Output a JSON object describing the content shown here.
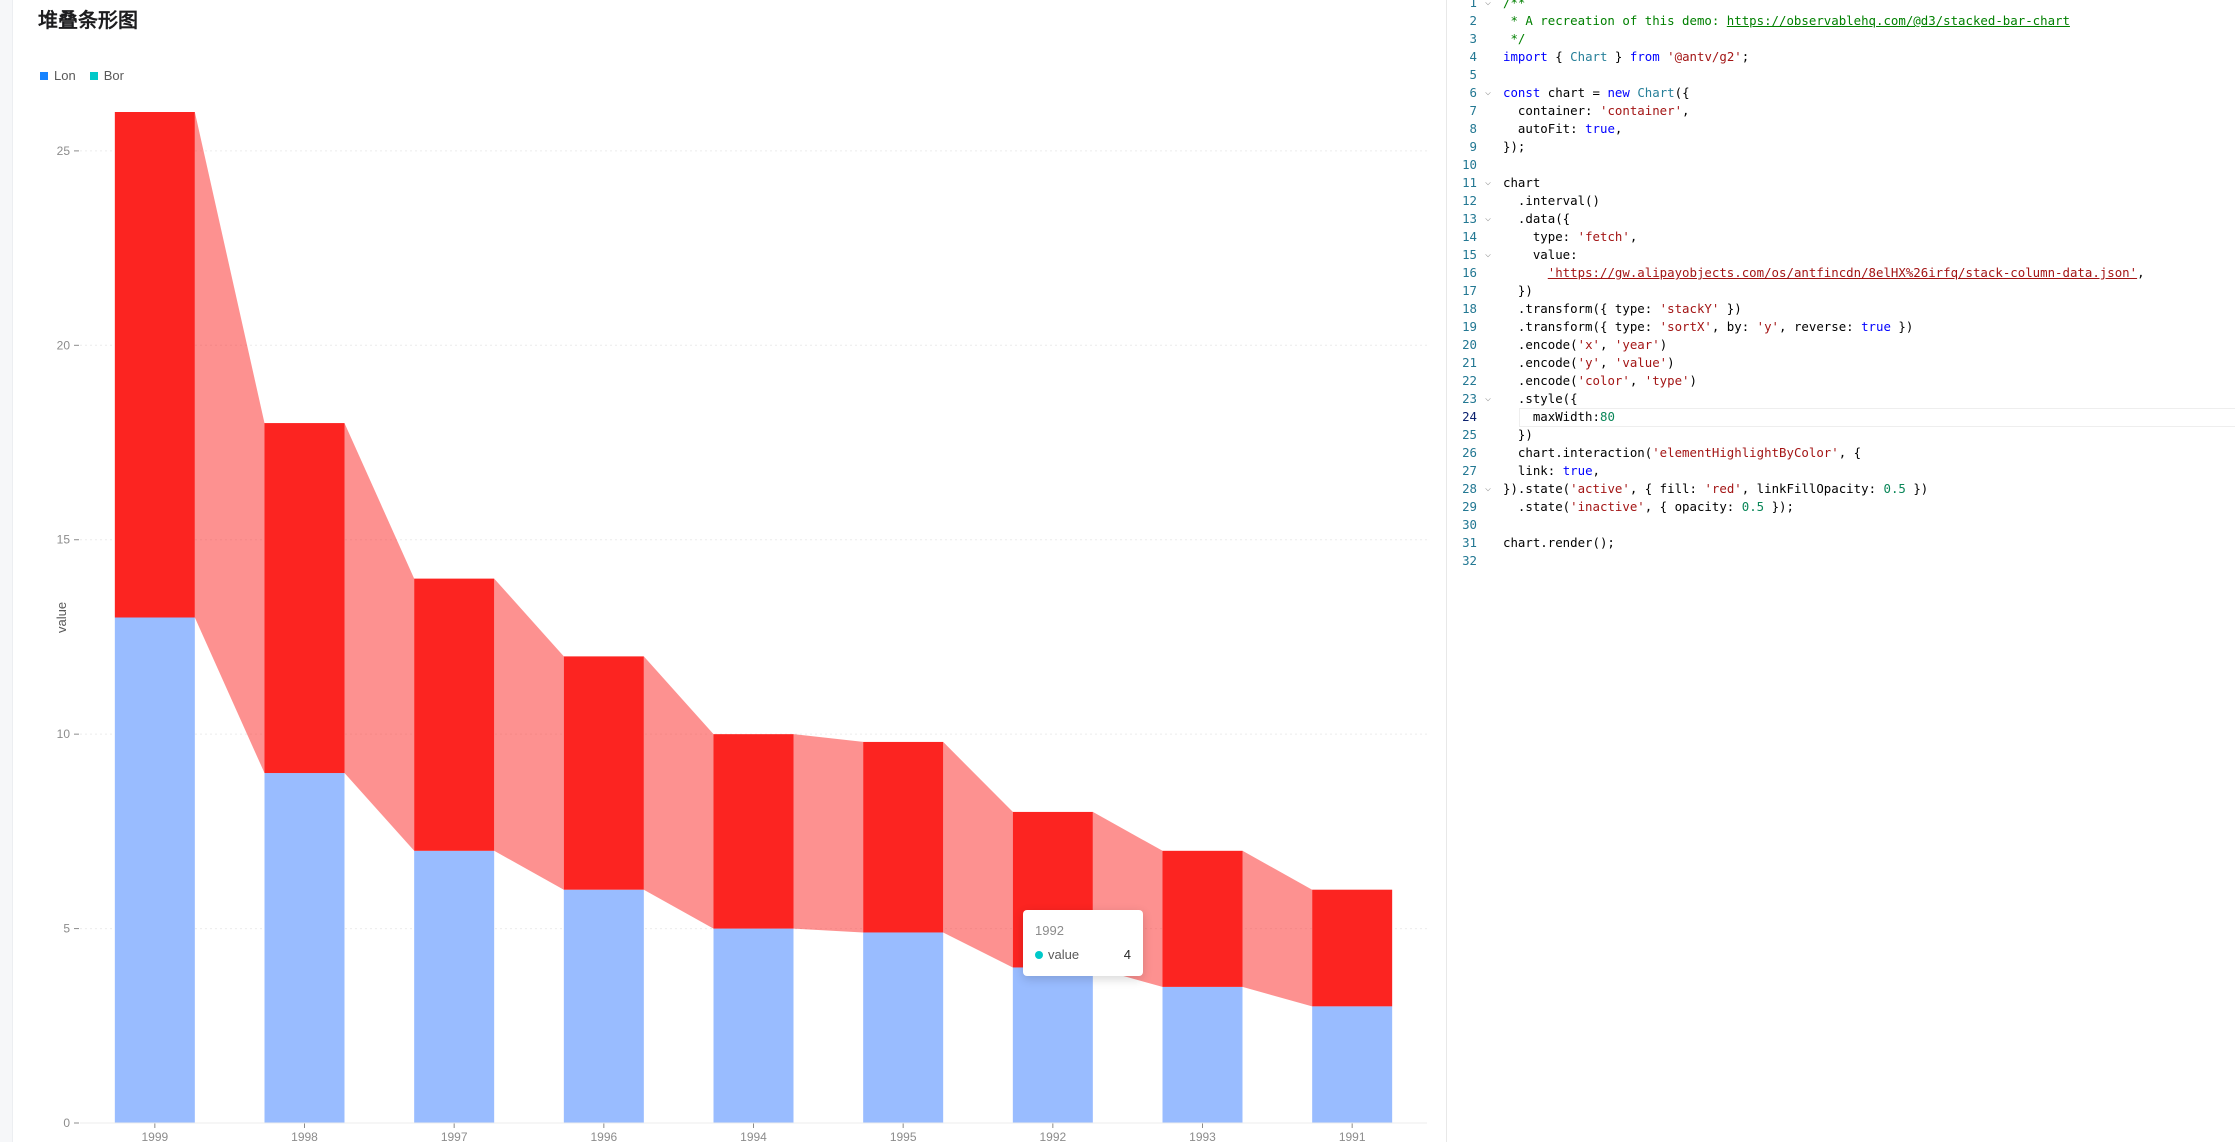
{
  "page": {
    "title": "堆叠条形图"
  },
  "colors": {
    "series_blue": "#99bcff",
    "series_red": "#fc2421",
    "link_fill": "#fc2421",
    "legend_blue": "#1783ff",
    "legend_teal": "#00c9c9",
    "axis": "#8c8c8c",
    "grid": "#ececec"
  },
  "chart_data": {
    "type": "bar",
    "stacked": true,
    "categories": [
      "1999",
      "1998",
      "1997",
      "1996",
      "1994",
      "1995",
      "1992",
      "1993",
      "1991"
    ],
    "series": [
      {
        "name": "Lon",
        "values": [
          13,
          9,
          7,
          6,
          5,
          4.9,
          4,
          3.5,
          3
        ]
      },
      {
        "name": "Bor",
        "values": [
          13,
          9,
          7,
          6,
          5,
          4.9,
          4,
          3.5,
          3
        ]
      }
    ],
    "ylabel": "value",
    "xlabel": "",
    "ylim": [
      0,
      26
    ],
    "yticks": [
      0,
      5,
      10,
      15,
      20,
      25
    ],
    "grid": true,
    "legend": "top-left",
    "highlighted_series": "Bor",
    "highlight_fill": "red",
    "link_fill_opacity": 0.5,
    "inactive_opacity": 0.5
  },
  "legend": {
    "items": [
      {
        "label": "Lon",
        "icon": "square-icon"
      },
      {
        "label": "Bor",
        "icon": "square-icon"
      }
    ]
  },
  "tooltip": {
    "title": "1992",
    "label": "value",
    "value": "4"
  },
  "editor": {
    "current_line": 24,
    "lines": [
      {
        "n": "1",
        "fold": "v",
        "html": "<span class=\"tk-com\">/**</span>"
      },
      {
        "n": "2",
        "fold": "",
        "html": "<span class=\"tk-com\"> * A recreation of this demo: </span><span class=\"tk-link\">https://observablehq.com/@d3/stacked-bar-chart</span>"
      },
      {
        "n": "3",
        "fold": "",
        "html": "<span class=\"tk-com\"> */</span>"
      },
      {
        "n": "4",
        "fold": "",
        "html": "<span class=\"tk-kw\">import</span> { <span class=\"tk-cls\">Chart</span> } <span class=\"tk-kw\">from</span> <span class=\"tk-str\">'@antv/g2'</span>;"
      },
      {
        "n": "5",
        "fold": "",
        "html": ""
      },
      {
        "n": "6",
        "fold": "v",
        "html": "<span class=\"tk-kw\">const</span> chart = <span class=\"tk-kw\">new</span> <span class=\"tk-cls\">Chart</span>({"
      },
      {
        "n": "7",
        "fold": "",
        "html": "  container: <span class=\"tk-str\">'container'</span>,"
      },
      {
        "n": "8",
        "fold": "",
        "html": "  autoFit: <span class=\"tk-kw\">true</span>,"
      },
      {
        "n": "9",
        "fold": "",
        "html": "});"
      },
      {
        "n": "10",
        "fold": "",
        "html": ""
      },
      {
        "n": "11",
        "fold": "v",
        "html": "chart"
      },
      {
        "n": "12",
        "fold": "",
        "html": "  .interval()"
      },
      {
        "n": "13",
        "fold": "v",
        "html": "  .data({"
      },
      {
        "n": "14",
        "fold": "",
        "html": "    type: <span class=\"tk-str\">'fetch'</span>,"
      },
      {
        "n": "15",
        "fold": "v",
        "html": "    value:"
      },
      {
        "n": "16",
        "fold": "",
        "html": "      <span class=\"tk-strlink\">'https://gw.alipayobjects.com/os/antfincdn/8elHX%26irfq/stack-column-data.json'</span>,"
      },
      {
        "n": "17",
        "fold": "",
        "html": "  })"
      },
      {
        "n": "18",
        "fold": "",
        "html": "  .transform({ type: <span class=\"tk-str\">'stackY'</span> })"
      },
      {
        "n": "19",
        "fold": "",
        "html": "  .transform({ type: <span class=\"tk-str\">'sortX'</span>, by: <span class=\"tk-str\">'y'</span>, reverse: <span class=\"tk-kw\">true</span> })"
      },
      {
        "n": "20",
        "fold": "",
        "html": "  .encode(<span class=\"tk-str\">'x'</span>, <span class=\"tk-str\">'year'</span>)"
      },
      {
        "n": "21",
        "fold": "",
        "html": "  .encode(<span class=\"tk-str\">'y'</span>, <span class=\"tk-str\">'value'</span>)"
      },
      {
        "n": "22",
        "fold": "",
        "html": "  .encode(<span class=\"tk-str\">'color'</span>, <span class=\"tk-str\">'type'</span>)"
      },
      {
        "n": "23",
        "fold": "v",
        "html": "  .style({"
      },
      {
        "n": "24",
        "fold": "",
        "html": "    maxWidth:<span class=\"tk-num\">80</span>"
      },
      {
        "n": "25",
        "fold": "",
        "html": "  })"
      },
      {
        "n": "26",
        "fold": "",
        "html": "  chart.interaction(<span class=\"tk-str\">'elementHighlightByColor'</span>, {"
      },
      {
        "n": "27",
        "fold": "",
        "html": "  link: <span class=\"tk-kw\">true</span>,"
      },
      {
        "n": "28",
        "fold": "v",
        "html": "}).state(<span class=\"tk-str\">'active'</span>, { fill: <span class=\"tk-str\">'red'</span>, linkFillOpacity: <span class=\"tk-num\">0.5</span> })"
      },
      {
        "n": "29",
        "fold": "",
        "html": "  .state(<span class=\"tk-str\">'inactive'</span>, { opacity: <span class=\"tk-num\">0.5</span> });"
      },
      {
        "n": "30",
        "fold": "",
        "html": ""
      },
      {
        "n": "31",
        "fold": "",
        "html": "chart.render();"
      },
      {
        "n": "32",
        "fold": "",
        "html": ""
      }
    ]
  }
}
